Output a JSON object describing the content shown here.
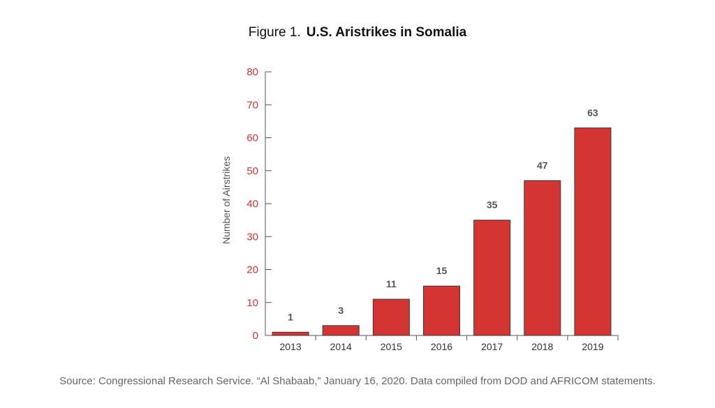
{
  "figure": {
    "prefix": "Figure 1.",
    "title": "U.S. Aristrikes in Somalia"
  },
  "source": "Source: Congressional Research Service. “Al Shabaab,” January 16, 2020. Data compiled from DOD and AFRICOM statements.",
  "colors": {
    "bar": "#d23532",
    "bar_stroke": "#3a3a3a",
    "y_tick_label": "#d23532",
    "x_tick_label": "#333333",
    "data_label": "#555555",
    "axis": "#555555"
  },
  "chart_data": {
    "type": "bar",
    "title": "U.S. Aristrikes in Somalia",
    "xlabel": "",
    "ylabel": "Number of Airstrikes",
    "categories": [
      "2013",
      "2014",
      "2015",
      "2016",
      "2017",
      "2018",
      "2019"
    ],
    "values": [
      1,
      3,
      11,
      15,
      35,
      47,
      63
    ],
    "ylim": [
      0,
      80
    ],
    "yticks": [
      0,
      10,
      20,
      30,
      40,
      50,
      60,
      70,
      80
    ],
    "grid": false,
    "data_labels": true
  }
}
